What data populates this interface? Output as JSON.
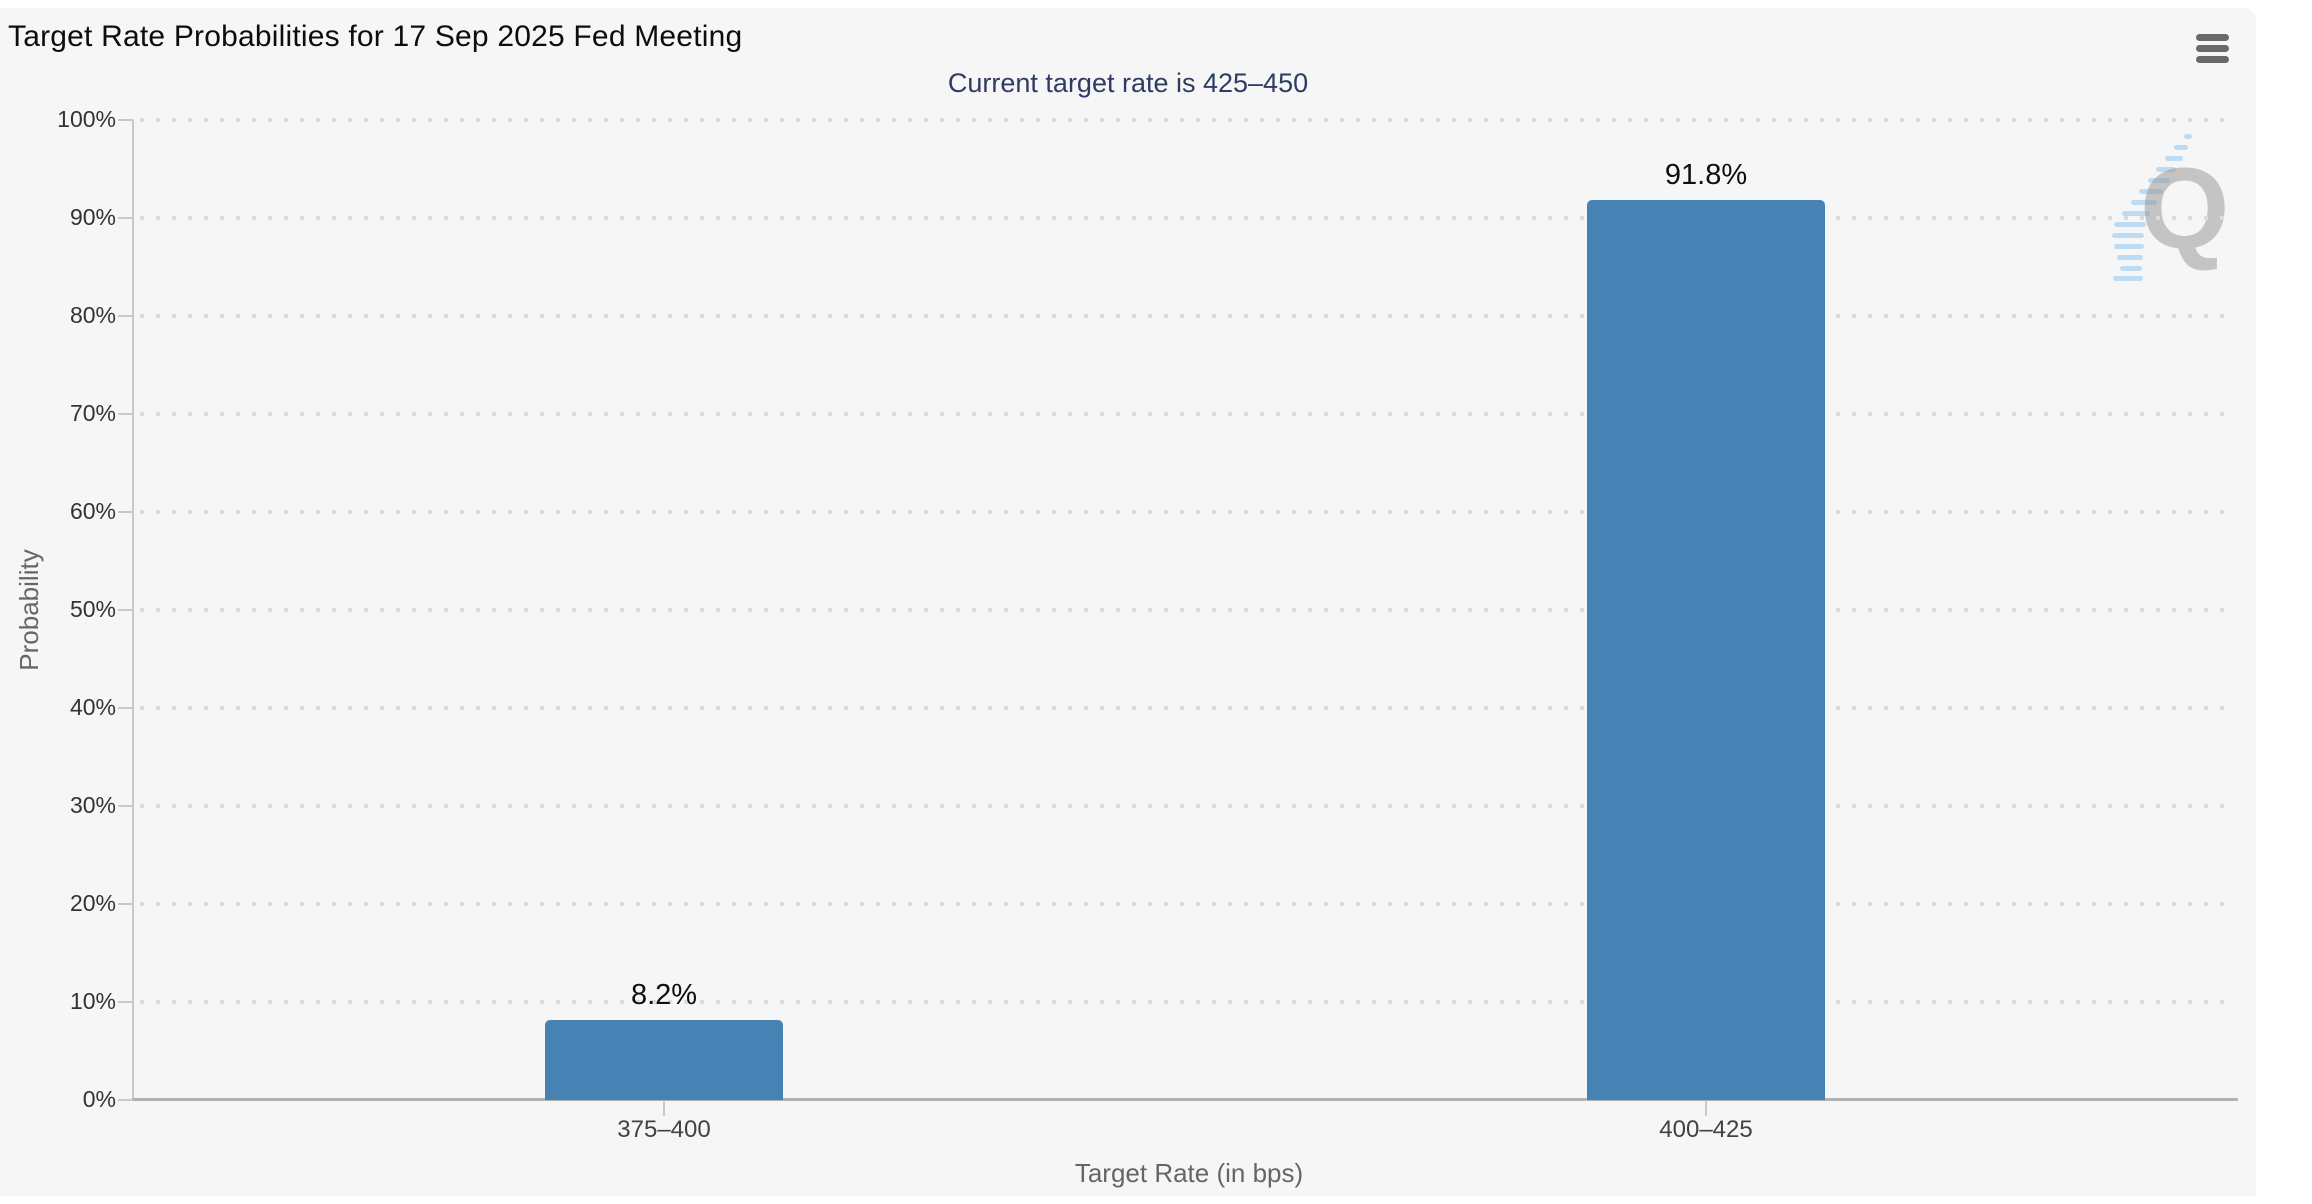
{
  "menu": {
    "icon": "hamburger-icon"
  },
  "chart_data": {
    "type": "bar",
    "title": "Target Rate Probabilities for 17 Sep 2025 Fed Meeting",
    "subtitle": "Current target rate is 425–450",
    "categories": [
      "375–400",
      "400–425"
    ],
    "values": [
      8.2,
      91.8
    ],
    "value_labels": [
      "8.2%",
      "91.8%"
    ],
    "xlabel": "Target Rate (in bps)",
    "ylabel": "Probability",
    "ylim": [
      0,
      100
    ],
    "ytick_step": 10,
    "ytick_labels": [
      "0%",
      "10%",
      "20%",
      "30%",
      "40%",
      "50%",
      "60%",
      "70%",
      "80%",
      "90%",
      "100%"
    ],
    "grid": "dotted-horizontal",
    "legend": "none",
    "bar_color": "#4682b4",
    "watermark_letter": "Q"
  }
}
